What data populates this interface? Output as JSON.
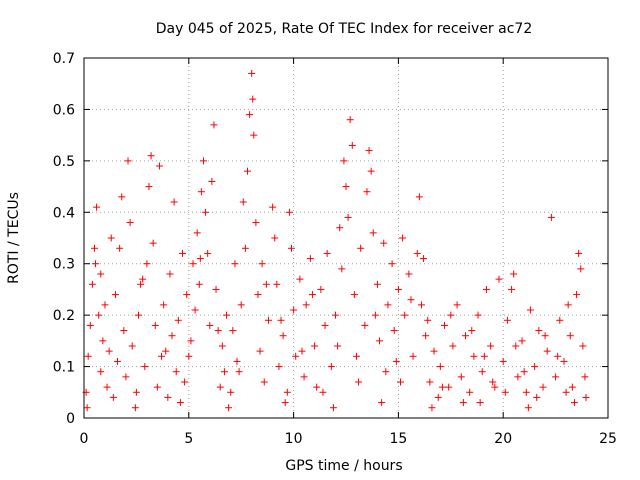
{
  "chart_data": {
    "type": "scatter",
    "title": "Day 045 of 2025, Rate Of TEC Index for receiver ac72",
    "xlabel": "GPS time / hours",
    "ylabel": "ROTI / TECUs",
    "xlim": [
      0,
      25
    ],
    "ylim": [
      0,
      0.7
    ],
    "xticks": [
      0,
      5,
      10,
      15,
      20,
      25
    ],
    "yticks": [
      0,
      0.1,
      0.2,
      0.3,
      0.4,
      0.5,
      0.6,
      0.7
    ],
    "xtick_labels": [
      "0",
      "5",
      "10",
      "15",
      "20",
      "25"
    ],
    "ytick_labels": [
      "0",
      "0.1",
      "0.2",
      "0.3",
      "0.4",
      "0.5",
      "0.6",
      "0.7"
    ],
    "grid": true,
    "marker": "+",
    "color": "#ff0000",
    "series": [
      {
        "name": "ROTI",
        "points": [
          [
            0.1,
            0.05
          ],
          [
            0.2,
            0.12
          ],
          [
            0.3,
            0.18
          ],
          [
            0.4,
            0.26
          ],
          [
            0.5,
            0.33
          ],
          [
            0.55,
            0.3
          ],
          [
            0.6,
            0.41
          ],
          [
            0.7,
            0.2
          ],
          [
            0.8,
            0.09
          ],
          [
            0.9,
            0.15
          ],
          [
            1.0,
            0.22
          ],
          [
            1.1,
            0.06
          ],
          [
            1.2,
            0.13
          ],
          [
            1.4,
            0.04
          ],
          [
            1.5,
            0.24
          ],
          [
            1.6,
            0.11
          ],
          [
            1.7,
            0.33
          ],
          [
            1.8,
            0.43
          ],
          [
            1.9,
            0.17
          ],
          [
            2.0,
            0.08
          ],
          [
            2.1,
            0.5
          ],
          [
            2.2,
            0.38
          ],
          [
            2.3,
            0.14
          ],
          [
            2.5,
            0.05
          ],
          [
            2.6,
            0.2
          ],
          [
            2.7,
            0.26
          ],
          [
            2.9,
            0.1
          ],
          [
            3.0,
            0.3
          ],
          [
            3.1,
            0.45
          ],
          [
            3.2,
            0.51
          ],
          [
            3.3,
            0.34
          ],
          [
            3.4,
            0.18
          ],
          [
            3.5,
            0.06
          ],
          [
            3.6,
            0.49
          ],
          [
            3.7,
            0.12
          ],
          [
            3.8,
            0.22
          ],
          [
            4.0,
            0.04
          ],
          [
            4.1,
            0.28
          ],
          [
            4.2,
            0.16
          ],
          [
            4.3,
            0.42
          ],
          [
            4.4,
            0.09
          ],
          [
            4.5,
            0.19
          ],
          [
            4.7,
            0.32
          ],
          [
            4.8,
            0.07
          ],
          [
            4.9,
            0.24
          ],
          [
            5.0,
            0.12
          ],
          [
            5.1,
            0.15
          ],
          [
            5.2,
            0.3
          ],
          [
            5.3,
            0.21
          ],
          [
            5.4,
            0.36
          ],
          [
            5.5,
            0.26
          ],
          [
            5.6,
            0.44
          ],
          [
            5.7,
            0.5
          ],
          [
            5.8,
            0.4
          ],
          [
            5.9,
            0.32
          ],
          [
            6.0,
            0.18
          ],
          [
            6.1,
            0.46
          ],
          [
            6.2,
            0.57
          ],
          [
            6.3,
            0.25
          ],
          [
            6.5,
            0.06
          ],
          [
            6.6,
            0.14
          ],
          [
            6.7,
            0.09
          ],
          [
            6.8,
            0.2
          ],
          [
            7.0,
            0.05
          ],
          [
            7.1,
            0.17
          ],
          [
            7.2,
            0.3
          ],
          [
            7.3,
            0.11
          ],
          [
            7.5,
            0.22
          ],
          [
            7.6,
            0.42
          ],
          [
            7.7,
            0.33
          ],
          [
            7.8,
            0.48
          ],
          [
            7.9,
            0.59
          ],
          [
            8.0,
            0.67
          ],
          [
            8.05,
            0.62
          ],
          [
            8.1,
            0.55
          ],
          [
            8.2,
            0.38
          ],
          [
            8.3,
            0.24
          ],
          [
            8.4,
            0.13
          ],
          [
            8.5,
            0.3
          ],
          [
            8.6,
            0.07
          ],
          [
            8.8,
            0.19
          ],
          [
            9.0,
            0.41
          ],
          [
            9.1,
            0.35
          ],
          [
            9.2,
            0.26
          ],
          [
            9.3,
            0.1
          ],
          [
            9.5,
            0.16
          ],
          [
            9.7,
            0.05
          ],
          [
            9.8,
            0.4
          ],
          [
            9.9,
            0.33
          ],
          [
            10.0,
            0.21
          ],
          [
            10.1,
            0.12
          ],
          [
            10.3,
            0.27
          ],
          [
            10.5,
            0.08
          ],
          [
            10.6,
            0.22
          ],
          [
            10.8,
            0.31
          ],
          [
            11.0,
            0.14
          ],
          [
            11.1,
            0.06
          ],
          [
            11.3,
            0.25
          ],
          [
            11.5,
            0.18
          ],
          [
            11.6,
            0.32
          ],
          [
            11.8,
            0.1
          ],
          [
            12.0,
            0.2
          ],
          [
            12.2,
            0.37
          ],
          [
            12.3,
            0.29
          ],
          [
            12.4,
            0.5
          ],
          [
            12.5,
            0.45
          ],
          [
            12.6,
            0.39
          ],
          [
            12.7,
            0.58
          ],
          [
            12.8,
            0.53
          ],
          [
            12.9,
            0.24
          ],
          [
            13.0,
            0.12
          ],
          [
            13.2,
            0.33
          ],
          [
            13.4,
            0.18
          ],
          [
            13.5,
            0.44
          ],
          [
            13.6,
            0.52
          ],
          [
            13.7,
            0.48
          ],
          [
            13.8,
            0.36
          ],
          [
            14.0,
            0.26
          ],
          [
            14.1,
            0.15
          ],
          [
            14.3,
            0.34
          ],
          [
            14.5,
            0.22
          ],
          [
            14.7,
            0.3
          ],
          [
            14.9,
            0.11
          ],
          [
            15.0,
            0.25
          ],
          [
            15.2,
            0.35
          ],
          [
            15.3,
            0.2
          ],
          [
            15.5,
            0.28
          ],
          [
            15.7,
            0.12
          ],
          [
            15.9,
            0.32
          ],
          [
            16.0,
            0.43
          ],
          [
            16.1,
            0.22
          ],
          [
            16.3,
            0.16
          ],
          [
            16.5,
            0.07
          ],
          [
            16.7,
            0.13
          ],
          [
            16.9,
            0.04
          ],
          [
            17.0,
            0.1
          ],
          [
            17.2,
            0.18
          ],
          [
            17.4,
            0.06
          ],
          [
            17.6,
            0.14
          ],
          [
            17.8,
            0.22
          ],
          [
            18.0,
            0.08
          ],
          [
            18.2,
            0.16
          ],
          [
            18.4,
            0.05
          ],
          [
            18.6,
            0.12
          ],
          [
            18.8,
            0.2
          ],
          [
            19.0,
            0.09
          ],
          [
            19.2,
            0.25
          ],
          [
            19.4,
            0.14
          ],
          [
            19.6,
            0.06
          ],
          [
            19.8,
            0.27
          ],
          [
            20.0,
            0.11
          ],
          [
            20.2,
            0.19
          ],
          [
            20.4,
            0.25
          ],
          [
            20.5,
            0.28
          ],
          [
            20.7,
            0.08
          ],
          [
            20.9,
            0.15
          ],
          [
            21.1,
            0.05
          ],
          [
            21.3,
            0.21
          ],
          [
            21.5,
            0.1
          ],
          [
            21.7,
            0.17
          ],
          [
            21.9,
            0.06
          ],
          [
            22.1,
            0.13
          ],
          [
            22.3,
            0.39
          ],
          [
            22.5,
            0.08
          ],
          [
            22.7,
            0.19
          ],
          [
            22.9,
            0.11
          ],
          [
            23.1,
            0.22
          ],
          [
            23.3,
            0.06
          ],
          [
            23.5,
            0.24
          ],
          [
            23.6,
            0.32
          ],
          [
            23.7,
            0.29
          ],
          [
            23.8,
            0.14
          ],
          [
            23.9,
            0.08
          ],
          [
            0.15,
            0.02
          ],
          [
            2.45,
            0.02
          ],
          [
            4.6,
            0.03
          ],
          [
            6.9,
            0.02
          ],
          [
            9.6,
            0.03
          ],
          [
            11.9,
            0.02
          ],
          [
            14.2,
            0.03
          ],
          [
            16.6,
            0.02
          ],
          [
            18.9,
            0.03
          ],
          [
            21.2,
            0.02
          ],
          [
            23.4,
            0.03
          ],
          [
            0.8,
            0.28
          ],
          [
            1.3,
            0.35
          ],
          [
            2.8,
            0.27
          ],
          [
            3.9,
            0.13
          ],
          [
            5.55,
            0.31
          ],
          [
            6.4,
            0.17
          ],
          [
            7.4,
            0.09
          ],
          [
            8.7,
            0.26
          ],
          [
            9.4,
            0.19
          ],
          [
            10.4,
            0.13
          ],
          [
            10.9,
            0.24
          ],
          [
            11.4,
            0.05
          ],
          [
            12.1,
            0.14
          ],
          [
            13.1,
            0.07
          ],
          [
            13.9,
            0.2
          ],
          [
            14.4,
            0.09
          ],
          [
            14.8,
            0.17
          ],
          [
            15.1,
            0.07
          ],
          [
            15.6,
            0.23
          ],
          [
            16.2,
            0.31
          ],
          [
            16.4,
            0.19
          ],
          [
            17.1,
            0.06
          ],
          [
            17.5,
            0.2
          ],
          [
            18.1,
            0.03
          ],
          [
            18.5,
            0.17
          ],
          [
            19.1,
            0.12
          ],
          [
            19.5,
            0.07
          ],
          [
            20.1,
            0.05
          ],
          [
            20.6,
            0.14
          ],
          [
            21.0,
            0.09
          ],
          [
            21.6,
            0.04
          ],
          [
            22.0,
            0.16
          ],
          [
            22.6,
            0.12
          ],
          [
            23.0,
            0.05
          ],
          [
            23.2,
            0.16
          ],
          [
            23.95,
            0.04
          ]
        ]
      }
    ]
  }
}
